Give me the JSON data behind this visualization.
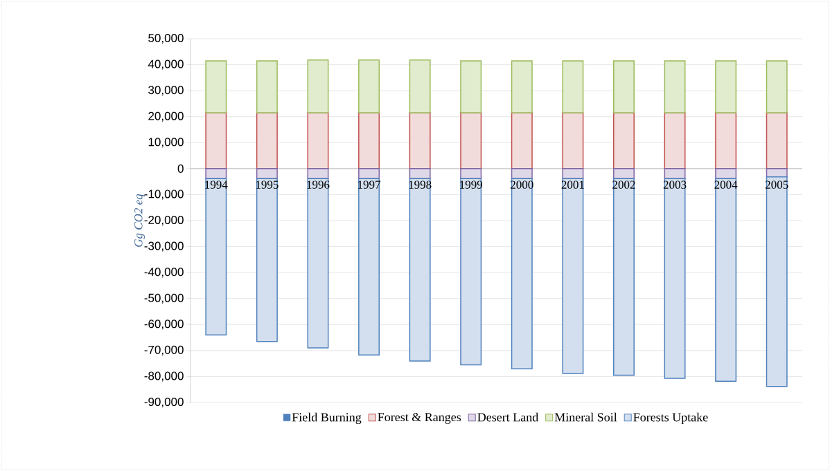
{
  "chart_data": {
    "type": "bar",
    "stacked": true,
    "ylabel": "Gg CO2 eq",
    "categories": [
      "1994",
      "1995",
      "1996",
      "1997",
      "1998",
      "1999",
      "2000",
      "2001",
      "2002",
      "2003",
      "2004",
      "2005"
    ],
    "series": [
      {
        "name": "Field Burning",
        "color": "#4f81bd",
        "values": [
          0,
          0,
          0,
          0,
          0,
          0,
          0,
          0,
          0,
          0,
          0,
          0
        ]
      },
      {
        "name": "Forest & Ranges",
        "color": "#c0504d",
        "values": [
          21500,
          21500,
          21500,
          21500,
          21500,
          21500,
          21500,
          21500,
          21500,
          21500,
          21500,
          21500
        ]
      },
      {
        "name": "Desert Land",
        "color": "#8064a2",
        "values": [
          -3800,
          -3800,
          -3800,
          -3800,
          -3800,
          -3800,
          -3800,
          -3800,
          -3800,
          -3800,
          -3800,
          -3200
        ]
      },
      {
        "name": "Mineral Soil",
        "color": "#9bbb59",
        "values": [
          20000,
          20000,
          20300,
          20300,
          20300,
          20000,
          20000,
          20000,
          20000,
          20000,
          20000,
          20000
        ]
      },
      {
        "name": "Forests Uptake",
        "color": "#4f81bd",
        "values": [
          -60200,
          -62700,
          -65200,
          -67900,
          -70200,
          -71700,
          -73200,
          -75000,
          -75700,
          -76900,
          -78000,
          -80600
        ]
      }
    ],
    "ylim": [
      -90000,
      50000
    ],
    "yticks": [
      {
        "value": -90000,
        "label": "-90,000"
      },
      {
        "value": -80000,
        "label": "-80,000"
      },
      {
        "value": -70000,
        "label": "-70,000"
      },
      {
        "value": -60000,
        "label": "-60,000"
      },
      {
        "value": -50000,
        "label": "-50,000"
      },
      {
        "value": -40000,
        "label": "-40,000"
      },
      {
        "value": -30000,
        "label": "-30,000"
      },
      {
        "value": -20000,
        "label": "-20,000"
      },
      {
        "value": -10000,
        "label": "-10,000"
      },
      0,
      {
        "value": 10000,
        "label": "10,000"
      },
      {
        "value": 20000,
        "label": "20,000"
      },
      {
        "value": 30000,
        "label": "30,000"
      },
      {
        "value": 40000,
        "label": "40,000"
      },
      {
        "value": 50000,
        "label": "50,000"
      }
    ],
    "grid": "y",
    "legend": "bottom"
  }
}
